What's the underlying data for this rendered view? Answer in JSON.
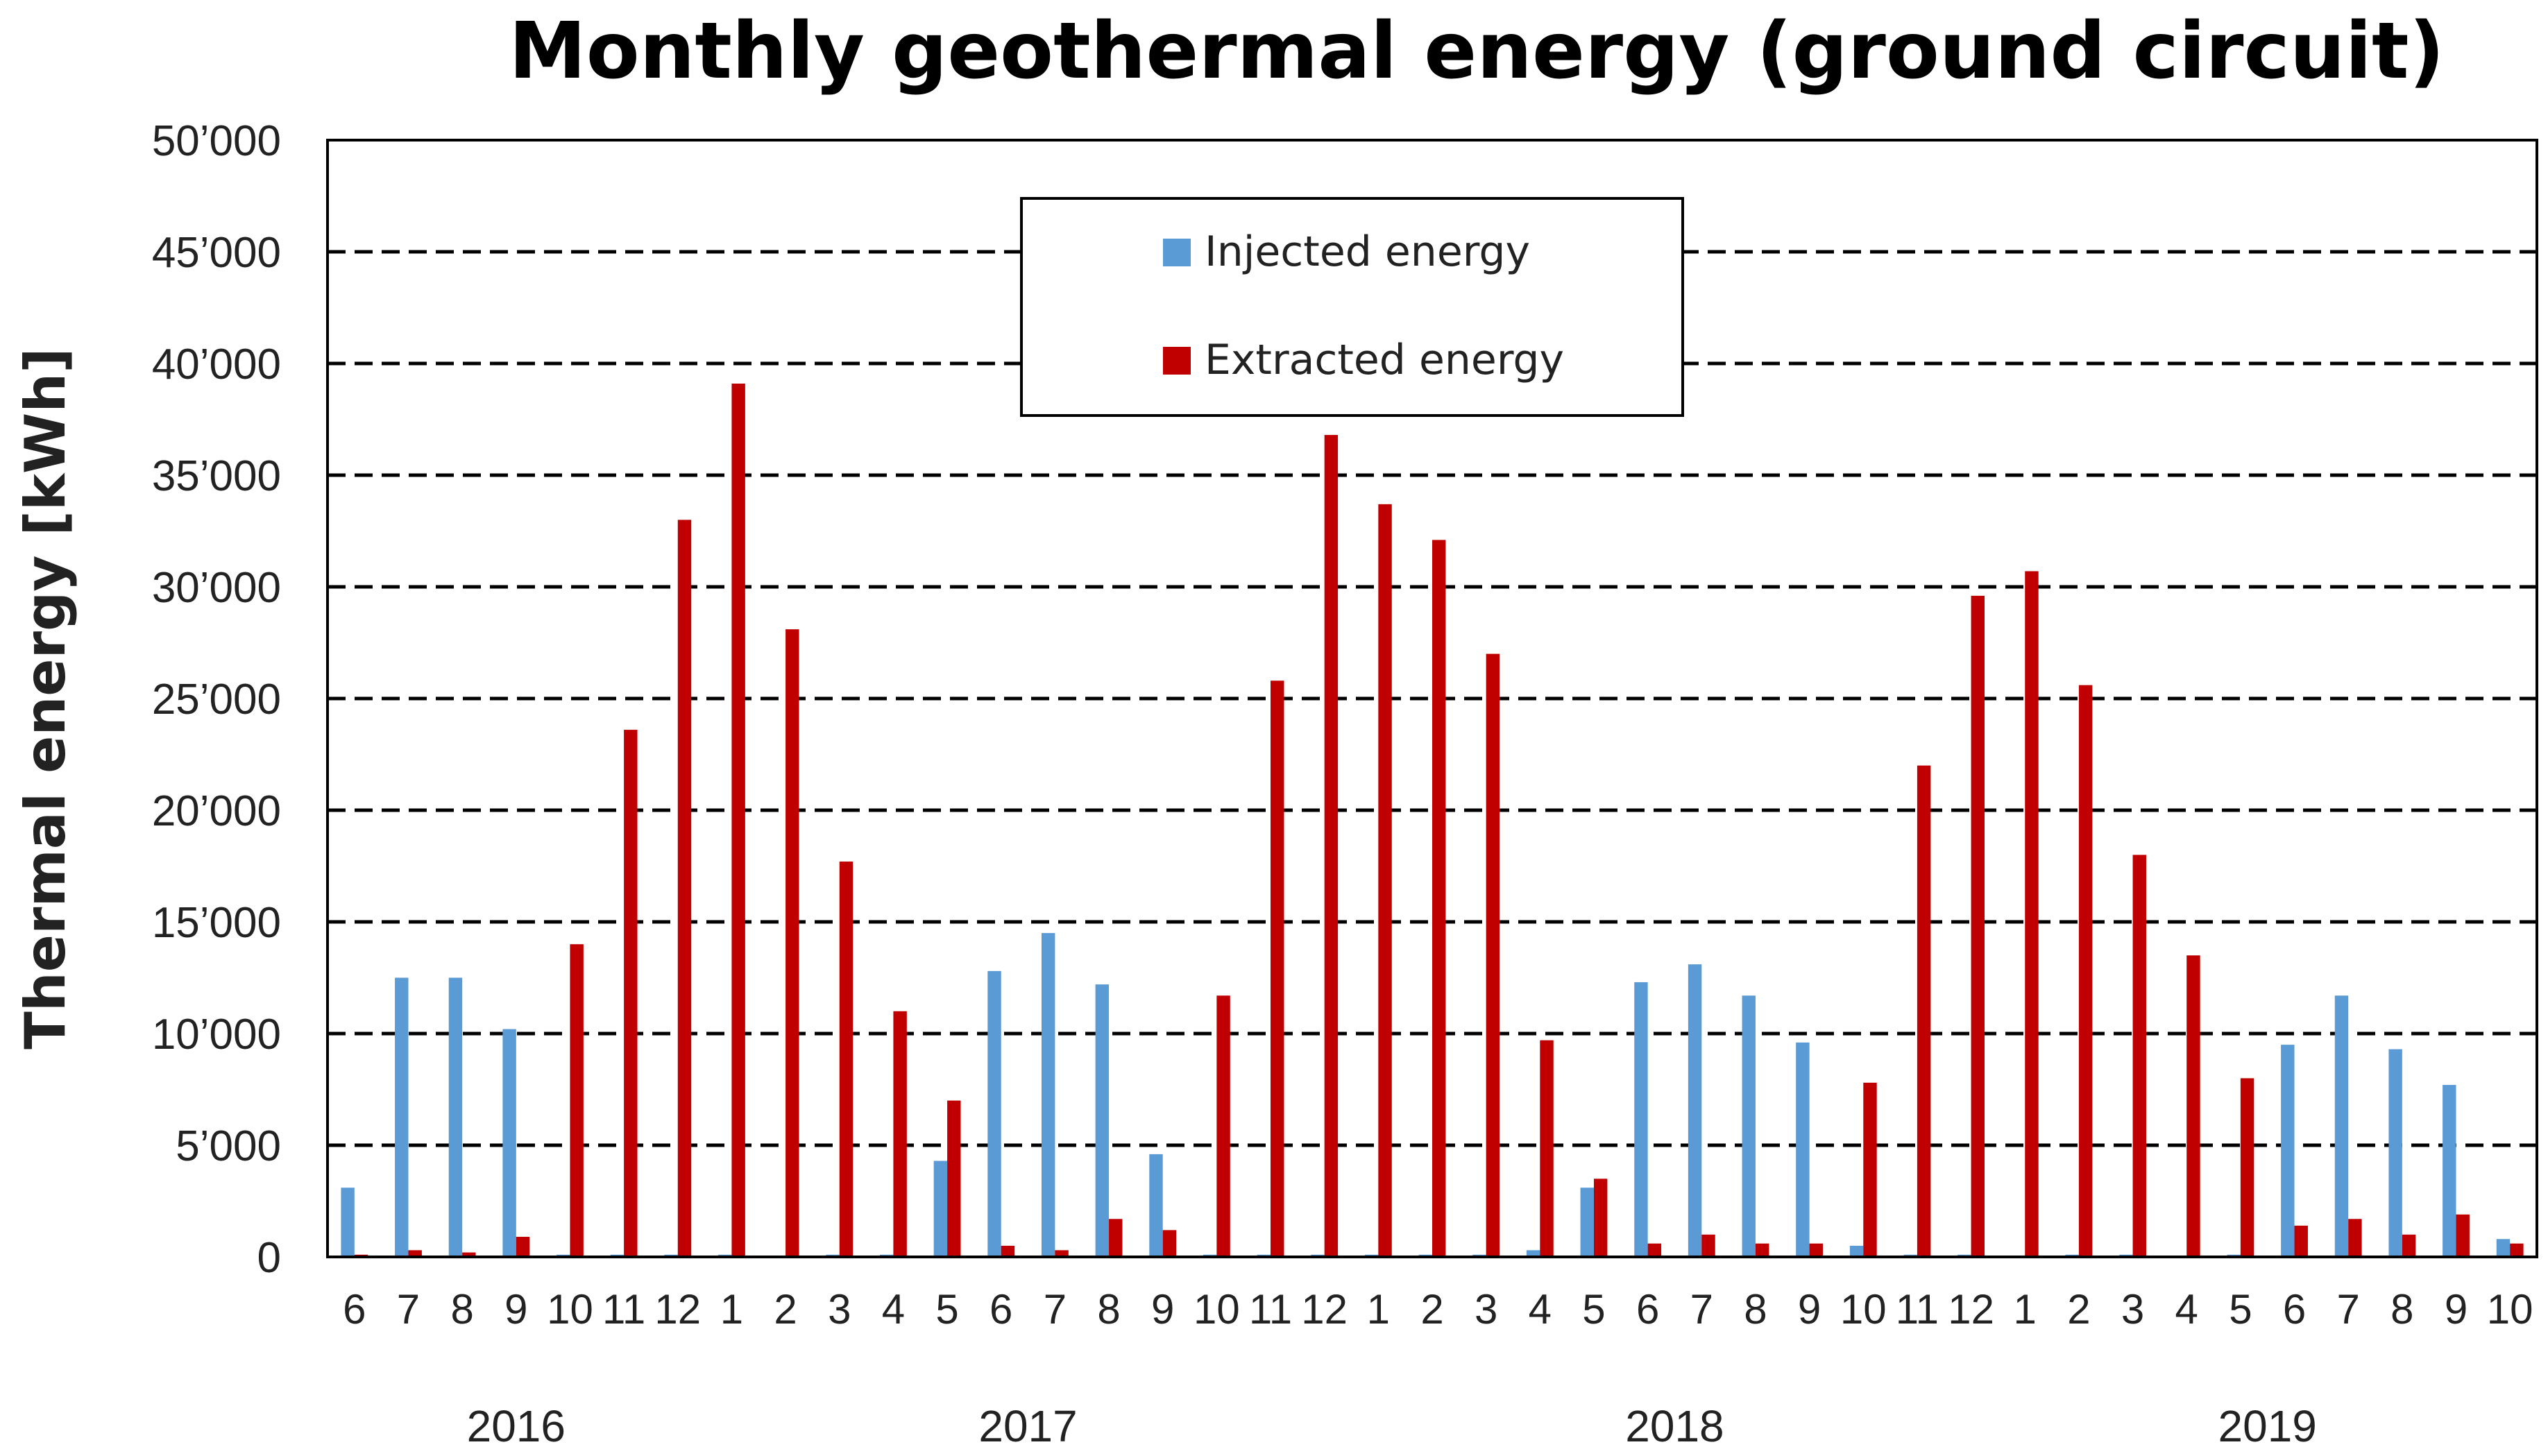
{
  "chart_data": {
    "type": "bar",
    "title": "Monthly geothermal energy (ground circuit)",
    "xlabel": "",
    "ylabel": "Thermal energy [kWh]",
    "ylim": [
      0,
      50000
    ],
    "yticks": [
      "0",
      "5’000",
      "10’000",
      "15’000",
      "20’000",
      "25’000",
      "30’000",
      "35’000",
      "40’000",
      "45’000",
      "50’000"
    ],
    "grid": "dashed horizontal",
    "legend_position": "top-center",
    "categories": [
      "6",
      "7",
      "8",
      "9",
      "10",
      "11",
      "12",
      "1",
      "2",
      "3",
      "4",
      "5",
      "6",
      "7",
      "8",
      "9",
      "10",
      "11",
      "12",
      "1",
      "2",
      "3",
      "4",
      "5",
      "6",
      "7",
      "8",
      "9",
      "10",
      "11",
      "12",
      "1",
      "2",
      "3",
      "4",
      "5",
      "6",
      "7",
      "8",
      "9",
      "10"
    ],
    "year_groups": [
      {
        "label": "2016",
        "start": 0,
        "end": 6
      },
      {
        "label": "2017",
        "start": 7,
        "end": 18
      },
      {
        "label": "2018",
        "start": 19,
        "end": 30
      },
      {
        "label": "2019",
        "start": 31,
        "end": 40
      }
    ],
    "series": [
      {
        "name": "Injected energy",
        "color": "#5b9bd5",
        "values": [
          3100,
          12500,
          12500,
          10200,
          100,
          100,
          100,
          100,
          0,
          100,
          100,
          4300,
          12800,
          14500,
          12200,
          4600,
          100,
          100,
          100,
          100,
          100,
          100,
          300,
          3100,
          12300,
          13100,
          11700,
          9600,
          500,
          100,
          100,
          0,
          100,
          100,
          0,
          100,
          9500,
          11700,
          9300,
          7700,
          800
        ]
      },
      {
        "name": "Extracted energy",
        "color": "#c00000",
        "values": [
          100,
          300,
          200,
          900,
          14000,
          23600,
          33000,
          39100,
          28100,
          17700,
          11000,
          7000,
          500,
          300,
          1700,
          1200,
          11700,
          25800,
          36800,
          33700,
          32100,
          27000,
          9700,
          3500,
          600,
          1000,
          600,
          600,
          7800,
          22000,
          29600,
          30700,
          25600,
          18000,
          13500,
          8000,
          1400,
          1700,
          1000,
          1900,
          600
        ]
      }
    ]
  }
}
